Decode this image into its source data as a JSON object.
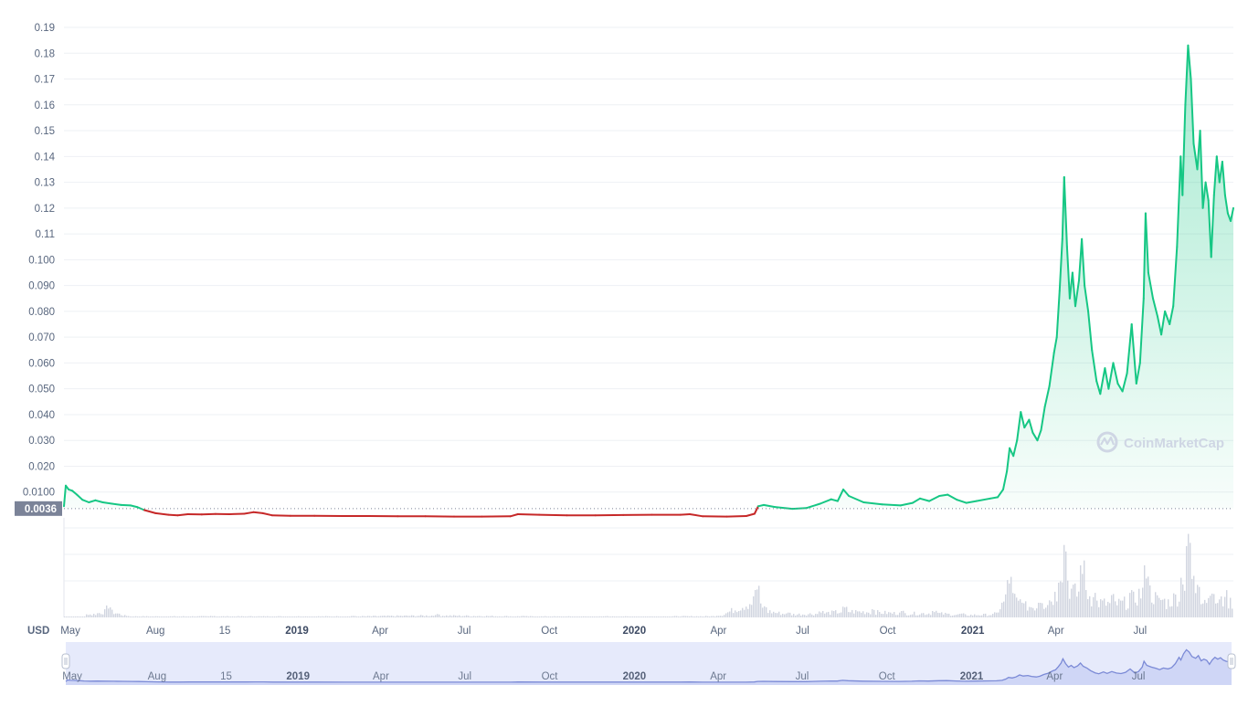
{
  "watermark": "CoinMarketCap",
  "chart_data": {
    "type": "area",
    "currency_label": "USD",
    "current_price_label": "0.0036",
    "baseline_value": 0.0036,
    "ylim": [
      0,
      0.19
    ],
    "y_ticks": [
      {
        "value": 0.19,
        "label": "0.19"
      },
      {
        "value": 0.18,
        "label": "0.18"
      },
      {
        "value": 0.17,
        "label": "0.17"
      },
      {
        "value": 0.16,
        "label": "0.16"
      },
      {
        "value": 0.15,
        "label": "0.15"
      },
      {
        "value": 0.14,
        "label": "0.14"
      },
      {
        "value": 0.13,
        "label": "0.13"
      },
      {
        "value": 0.12,
        "label": "0.12"
      },
      {
        "value": 0.11,
        "label": "0.11"
      },
      {
        "value": 0.1,
        "label": "0.100"
      },
      {
        "value": 0.09,
        "label": "0.090"
      },
      {
        "value": 0.08,
        "label": "0.080"
      },
      {
        "value": 0.07,
        "label": "0.070"
      },
      {
        "value": 0.06,
        "label": "0.060"
      },
      {
        "value": 0.05,
        "label": "0.050"
      },
      {
        "value": 0.04,
        "label": "0.040"
      },
      {
        "value": 0.03,
        "label": "0.030"
      },
      {
        "value": 0.02,
        "label": "0.020"
      },
      {
        "value": 0.01,
        "label": "0.0100"
      }
    ],
    "xlim": [
      "2018-04-24",
      "2021-10-10"
    ],
    "x_ticks": [
      {
        "date": "2018-05-01",
        "label": "May",
        "bold": false
      },
      {
        "date": "2018-08-01",
        "label": "Aug",
        "bold": false
      },
      {
        "date": "2018-10-15",
        "label": "15",
        "bold": false
      },
      {
        "date": "2019-01-01",
        "label": "2019",
        "bold": true
      },
      {
        "date": "2019-04-01",
        "label": "Apr",
        "bold": false
      },
      {
        "date": "2019-07-01",
        "label": "Jul",
        "bold": false
      },
      {
        "date": "2019-10-01",
        "label": "Oct",
        "bold": false
      },
      {
        "date": "2020-01-01",
        "label": "2020",
        "bold": true
      },
      {
        "date": "2020-04-01",
        "label": "Apr",
        "bold": false
      },
      {
        "date": "2020-07-01",
        "label": "Jul",
        "bold": false
      },
      {
        "date": "2020-10-01",
        "label": "Oct",
        "bold": false
      },
      {
        "date": "2021-01-01",
        "label": "2021",
        "bold": true
      },
      {
        "date": "2021-04-01",
        "label": "Apr",
        "bold": false
      },
      {
        "date": "2021-07-01",
        "label": "Jul",
        "bold": false
      }
    ],
    "series": [
      {
        "up_color": "#16c784",
        "down_color": "#c62828",
        "points": [
          [
            "2018-04-24",
            0.0045
          ],
          [
            "2018-04-26",
            0.0125
          ],
          [
            "2018-04-29",
            0.011
          ],
          [
            "2018-05-03",
            0.0105
          ],
          [
            "2018-05-08",
            0.009
          ],
          [
            "2018-05-14",
            0.007
          ],
          [
            "2018-05-21",
            0.006
          ],
          [
            "2018-05-28",
            0.0068
          ],
          [
            "2018-06-05",
            0.006
          ],
          [
            "2018-06-15",
            0.0055
          ],
          [
            "2018-06-25",
            0.005
          ],
          [
            "2018-07-05",
            0.0048
          ],
          [
            "2018-07-12",
            0.0042
          ],
          [
            "2018-07-20",
            0.003
          ],
          [
            "2018-08-01",
            0.0018
          ],
          [
            "2018-08-15",
            0.0012
          ],
          [
            "2018-08-25",
            0.001
          ],
          [
            "2018-09-05",
            0.0014
          ],
          [
            "2018-09-20",
            0.0013
          ],
          [
            "2018-10-05",
            0.0015
          ],
          [
            "2018-10-20",
            0.0014
          ],
          [
            "2018-11-05",
            0.0016
          ],
          [
            "2018-11-15",
            0.0022
          ],
          [
            "2018-11-25",
            0.0018
          ],
          [
            "2018-12-05",
            0.001
          ],
          [
            "2018-12-25",
            0.0008
          ],
          [
            "2019-01-20",
            0.0008
          ],
          [
            "2019-02-20",
            0.0007
          ],
          [
            "2019-03-20",
            0.0007
          ],
          [
            "2019-04-20",
            0.0006
          ],
          [
            "2019-05-20",
            0.0006
          ],
          [
            "2019-06-20",
            0.0005
          ],
          [
            "2019-07-20",
            0.0005
          ],
          [
            "2019-08-20",
            0.0006
          ],
          [
            "2019-08-28",
            0.0014
          ],
          [
            "2019-09-20",
            0.0012
          ],
          [
            "2019-10-20",
            0.001
          ],
          [
            "2019-11-20",
            0.001
          ],
          [
            "2019-12-20",
            0.0011
          ],
          [
            "2020-01-20",
            0.0012
          ],
          [
            "2020-02-20",
            0.0012
          ],
          [
            "2020-03-01",
            0.0014
          ],
          [
            "2020-03-15",
            0.0006
          ],
          [
            "2020-04-10",
            0.0005
          ],
          [
            "2020-05-01",
            0.0007
          ],
          [
            "2020-05-10",
            0.0016
          ],
          [
            "2020-05-14",
            0.0045
          ],
          [
            "2020-05-20",
            0.005
          ],
          [
            "2020-06-01",
            0.0042
          ],
          [
            "2020-06-20",
            0.0035
          ],
          [
            "2020-07-05",
            0.0038
          ],
          [
            "2020-07-20",
            0.0055
          ],
          [
            "2020-08-01",
            0.0072
          ],
          [
            "2020-08-08",
            0.0065
          ],
          [
            "2020-08-14",
            0.011
          ],
          [
            "2020-08-20",
            0.0085
          ],
          [
            "2020-09-05",
            0.006
          ],
          [
            "2020-09-25",
            0.0052
          ],
          [
            "2020-10-15",
            0.0048
          ],
          [
            "2020-10-28",
            0.0058
          ],
          [
            "2020-11-05",
            0.0075
          ],
          [
            "2020-11-15",
            0.0065
          ],
          [
            "2020-11-26",
            0.0085
          ],
          [
            "2020-12-05",
            0.009
          ],
          [
            "2020-12-15",
            0.007
          ],
          [
            "2020-12-25",
            0.0058
          ],
          [
            "2021-01-05",
            0.0065
          ],
          [
            "2021-01-20",
            0.0075
          ],
          [
            "2021-01-28",
            0.008
          ],
          [
            "2021-02-03",
            0.011
          ],
          [
            "2021-02-07",
            0.018
          ],
          [
            "2021-02-10",
            0.027
          ],
          [
            "2021-02-14",
            0.024
          ],
          [
            "2021-02-18",
            0.03
          ],
          [
            "2021-02-22",
            0.041
          ],
          [
            "2021-02-26",
            0.035
          ],
          [
            "2021-03-03",
            0.038
          ],
          [
            "2021-03-07",
            0.033
          ],
          [
            "2021-03-12",
            0.03
          ],
          [
            "2021-03-16",
            0.034
          ],
          [
            "2021-03-20",
            0.043
          ],
          [
            "2021-03-25",
            0.051
          ],
          [
            "2021-03-30",
            0.064
          ],
          [
            "2021-04-02",
            0.07
          ],
          [
            "2021-04-05",
            0.088
          ],
          [
            "2021-04-08",
            0.108
          ],
          [
            "2021-04-10",
            0.132
          ],
          [
            "2021-04-13",
            0.105
          ],
          [
            "2021-04-16",
            0.085
          ],
          [
            "2021-04-19",
            0.095
          ],
          [
            "2021-04-22",
            0.082
          ],
          [
            "2021-04-26",
            0.092
          ],
          [
            "2021-04-29",
            0.108
          ],
          [
            "2021-05-02",
            0.09
          ],
          [
            "2021-05-06",
            0.08
          ],
          [
            "2021-05-10",
            0.065
          ],
          [
            "2021-05-15",
            0.053
          ],
          [
            "2021-05-19",
            0.048
          ],
          [
            "2021-05-24",
            0.058
          ],
          [
            "2021-05-28",
            0.05
          ],
          [
            "2021-06-02",
            0.06
          ],
          [
            "2021-06-07",
            0.052
          ],
          [
            "2021-06-12",
            0.049
          ],
          [
            "2021-06-17",
            0.056
          ],
          [
            "2021-06-22",
            0.075
          ],
          [
            "2021-06-27",
            0.052
          ],
          [
            "2021-07-01",
            0.06
          ],
          [
            "2021-07-05",
            0.085
          ],
          [
            "2021-07-07",
            0.118
          ],
          [
            "2021-07-10",
            0.095
          ],
          [
            "2021-07-15",
            0.085
          ],
          [
            "2021-07-20",
            0.078
          ],
          [
            "2021-07-24",
            0.071
          ],
          [
            "2021-07-28",
            0.08
          ],
          [
            "2021-08-02",
            0.075
          ],
          [
            "2021-08-06",
            0.082
          ],
          [
            "2021-08-10",
            0.105
          ],
          [
            "2021-08-14",
            0.14
          ],
          [
            "2021-08-16",
            0.125
          ],
          [
            "2021-08-19",
            0.16
          ],
          [
            "2021-08-22",
            0.183
          ],
          [
            "2021-08-25",
            0.17
          ],
          [
            "2021-08-28",
            0.145
          ],
          [
            "2021-09-01",
            0.135
          ],
          [
            "2021-09-04",
            0.15
          ],
          [
            "2021-09-07",
            0.12
          ],
          [
            "2021-09-10",
            0.13
          ],
          [
            "2021-09-13",
            0.123
          ],
          [
            "2021-09-16",
            0.101
          ],
          [
            "2021-09-19",
            0.125
          ],
          [
            "2021-09-22",
            0.14
          ],
          [
            "2021-09-25",
            0.13
          ],
          [
            "2021-09-28",
            0.138
          ],
          [
            "2021-10-01",
            0.125
          ],
          [
            "2021-10-04",
            0.118
          ],
          [
            "2021-10-07",
            0.115
          ],
          [
            "2021-10-10",
            0.12
          ]
        ]
      }
    ],
    "volume": {
      "color": "#d1d5e0",
      "points": [
        [
          "2018-05-20",
          0.1
        ],
        [
          "2018-06-10",
          0.35
        ],
        [
          "2018-07-01",
          0.05
        ],
        [
          "2018-10-01",
          0.05
        ],
        [
          "2019-03-01",
          0.05
        ],
        [
          "2019-06-01",
          0.1
        ],
        [
          "2019-09-01",
          0.05
        ],
        [
          "2019-12-01",
          0.04
        ],
        [
          "2020-04-01",
          0.06
        ],
        [
          "2020-05-12",
          0.95
        ],
        [
          "2020-05-20",
          0.35
        ],
        [
          "2020-06-15",
          0.15
        ],
        [
          "2020-07-20",
          0.2
        ],
        [
          "2020-08-15",
          0.32
        ],
        [
          "2020-09-15",
          0.28
        ],
        [
          "2020-10-15",
          0.2
        ],
        [
          "2020-11-20",
          0.22
        ],
        [
          "2020-12-20",
          0.12
        ],
        [
          "2021-01-25",
          0.15
        ],
        [
          "2021-02-09",
          1.25
        ],
        [
          "2021-02-22",
          0.6
        ],
        [
          "2021-03-15",
          0.55
        ],
        [
          "2021-04-05",
          1.4
        ],
        [
          "2021-04-10",
          2.4
        ],
        [
          "2021-04-20",
          1.0
        ],
        [
          "2021-04-29",
          1.7
        ],
        [
          "2021-05-12",
          0.8
        ],
        [
          "2021-06-01",
          0.7
        ],
        [
          "2021-06-20",
          0.8
        ],
        [
          "2021-07-07",
          1.55
        ],
        [
          "2021-07-25",
          0.6
        ],
        [
          "2021-08-15",
          1.3
        ],
        [
          "2021-08-22",
          2.5
        ],
        [
          "2021-09-01",
          1.2
        ],
        [
          "2021-09-15",
          0.9
        ],
        [
          "2021-10-01",
          0.8
        ]
      ]
    },
    "navigator": {
      "x_ticks": [
        {
          "date": "2018-05-01",
          "label": "May",
          "bold": false
        },
        {
          "date": "2018-08-01",
          "label": "Aug",
          "bold": false
        },
        {
          "date": "2018-10-15",
          "label": "15",
          "bold": false
        },
        {
          "date": "2019-01-01",
          "label": "2019",
          "bold": true
        },
        {
          "date": "2019-04-01",
          "label": "Apr",
          "bold": false
        },
        {
          "date": "2019-07-01",
          "label": "Jul",
          "bold": false
        },
        {
          "date": "2019-10-01",
          "label": "Oct",
          "bold": false
        },
        {
          "date": "2020-01-01",
          "label": "2020",
          "bold": true
        },
        {
          "date": "2020-04-01",
          "label": "Apr",
          "bold": false
        },
        {
          "date": "2020-07-01",
          "label": "Jul",
          "bold": false
        },
        {
          "date": "2020-10-01",
          "label": "Oct",
          "bold": false
        },
        {
          "date": "2021-01-01",
          "label": "2021",
          "bold": true
        },
        {
          "date": "2021-04-01",
          "label": "Apr",
          "bold": false
        },
        {
          "date": "2021-07-01",
          "label": "Jul",
          "bold": false
        }
      ],
      "line_color": "#7b8ad6",
      "fill_color": "#e6eafb"
    }
  }
}
